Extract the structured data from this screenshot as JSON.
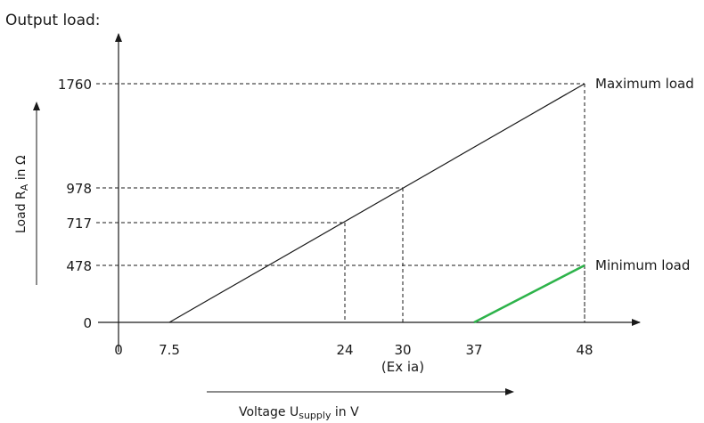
{
  "chart_data": {
    "type": "line",
    "title": "Output load:",
    "xlabel": {
      "prefix": "Voltage U",
      "sub": "supply",
      "suffix": " in V"
    },
    "ylabel": {
      "prefix": "Load R",
      "sub": "A",
      "suffix": " in Ω"
    },
    "x_ticks": [
      {
        "value": 0,
        "label": "0"
      },
      {
        "value": 7.5,
        "label": "7.5"
      },
      {
        "value": 24,
        "label": "24"
      },
      {
        "value": 30,
        "label": "30"
      },
      {
        "value": 37,
        "label": "37"
      },
      {
        "value": 48,
        "label": "48"
      }
    ],
    "x_tick_note": {
      "value": 30,
      "label": "(Ex ia)"
    },
    "y_ticks": [
      {
        "value": 0,
        "label": "0"
      },
      {
        "value": 478,
        "label": "478"
      },
      {
        "value": 717,
        "label": "717"
      },
      {
        "value": 978,
        "label": "978"
      },
      {
        "value": 1760,
        "label": "1760"
      }
    ],
    "series": [
      {
        "name": "Maximum load",
        "color": "#1a1a1a",
        "points": [
          [
            7.5,
            0
          ],
          [
            48,
            1760
          ]
        ]
      },
      {
        "name": "Minimum load",
        "color": "#2db34a",
        "points": [
          [
            37,
            0
          ],
          [
            48,
            478
          ]
        ]
      }
    ],
    "reference_points": [
      [
        24,
        717
      ],
      [
        30,
        978
      ],
      [
        48,
        1760
      ],
      [
        48,
        478
      ]
    ],
    "grid": false
  }
}
